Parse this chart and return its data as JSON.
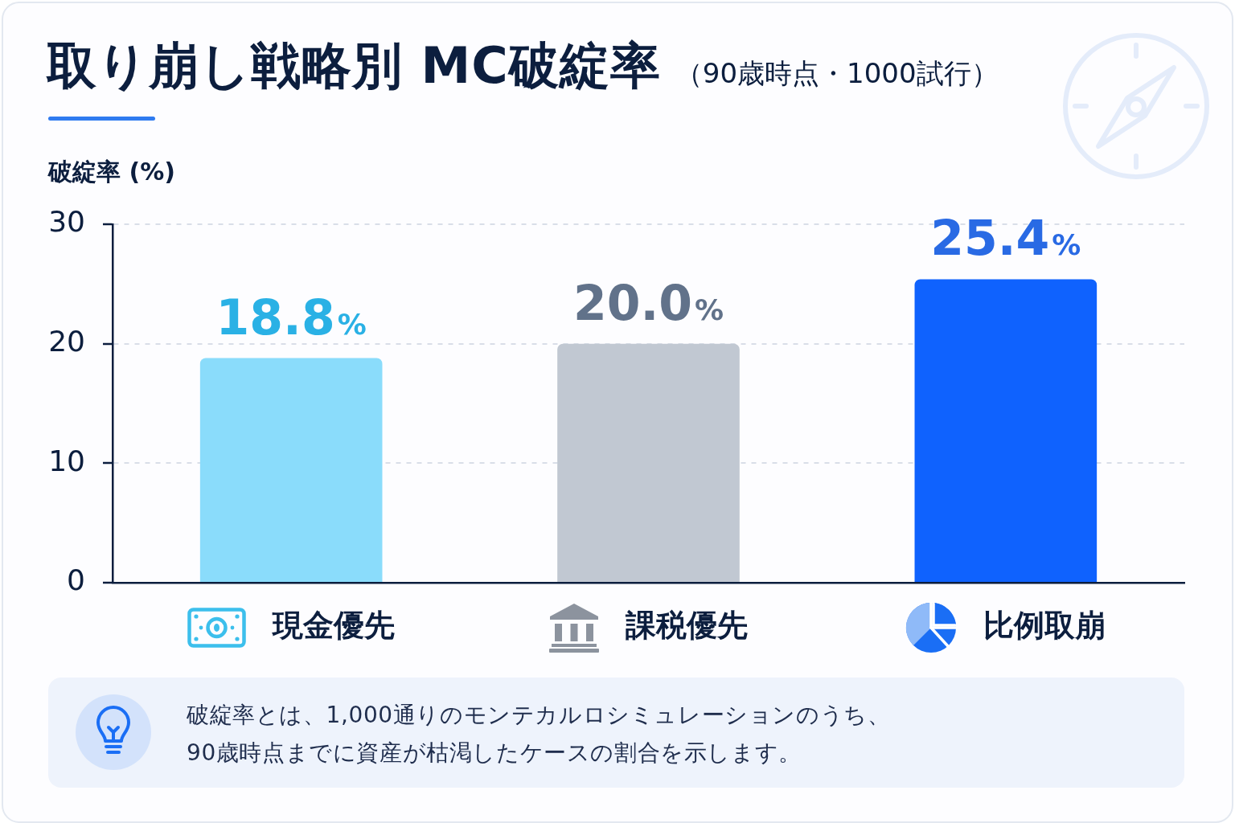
{
  "chart_data": {
    "type": "bar",
    "title": "取り崩し戦略別 MC破綻率",
    "subtitle": "（90歳時点・1000試行）",
    "ylabel": "破綻率 (%)",
    "categories": [
      "現金優先",
      "課税優先",
      "比例取崩"
    ],
    "values": [
      18.8,
      20.0,
      25.4
    ],
    "colors": [
      "#8adcfb",
      "#c1c8d2",
      "#0f62fe"
    ],
    "value_labels": [
      "18.8%",
      "20.0%",
      "25.4%"
    ],
    "ylim": [
      0,
      30
    ],
    "yticks": [
      0,
      10,
      20,
      30
    ],
    "grid": "y",
    "annotations": [
      "破綻率とは、1,000通りのモンテカルロシミュレーションのうち、\n90歳時点までに資産が枯渇したケースの割合を示します。"
    ]
  }
}
